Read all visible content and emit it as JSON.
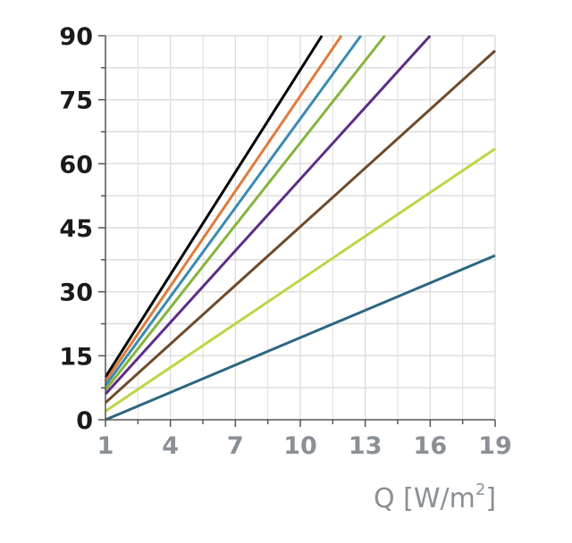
{
  "chart_data": {
    "type": "line",
    "xlabel": "Q [W/m²]",
    "xlabel_parts": {
      "main": "Q [W/m",
      "sup": "2",
      "close": "]"
    },
    "ylabel": "",
    "xlim": [
      1,
      19
    ],
    "ylim": [
      0,
      90
    ],
    "xticks": [
      1,
      4,
      7,
      10,
      13,
      16,
      19
    ],
    "yticks": [
      0,
      15,
      30,
      45,
      60,
      75,
      90
    ],
    "grid": true,
    "series": [
      {
        "color": "#000000",
        "x": [
          1,
          11
        ],
        "y": [
          10,
          90
        ]
      },
      {
        "color": "#e07b3c",
        "x": [
          1,
          11.9
        ],
        "y": [
          9,
          90
        ]
      },
      {
        "color": "#3a8bb0",
        "x": [
          1,
          12.8
        ],
        "y": [
          8,
          90
        ]
      },
      {
        "color": "#86b43c",
        "x": [
          1,
          13.9
        ],
        "y": [
          7,
          90
        ]
      },
      {
        "color": "#5e2d86",
        "x": [
          1,
          16
        ],
        "y": [
          6,
          90
        ]
      },
      {
        "color": "#6f4a2a",
        "x": [
          1,
          19
        ],
        "y": [
          4,
          86.5
        ]
      },
      {
        "color": "#bcd645",
        "x": [
          1,
          19
        ],
        "y": [
          2,
          63.5
        ]
      },
      {
        "color": "#2e6680",
        "x": [
          1,
          19
        ],
        "y": [
          0,
          38.5
        ]
      }
    ]
  }
}
